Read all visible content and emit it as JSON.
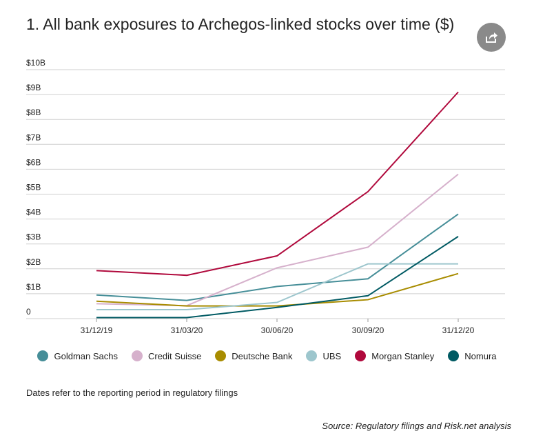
{
  "title": "1. All bank exposures to Archegos-linked stocks over time ($)",
  "share_icon": "share-icon",
  "note": "Dates refer to the reporting period in regulatory filings",
  "source": "Source: Regulatory filings and Risk.net analysis",
  "chart_data": {
    "type": "line",
    "title": "1. All bank exposures to Archegos-linked stocks over time ($)",
    "xlabel": "",
    "ylabel": "",
    "x": [
      "31/12/19",
      "31/03/20",
      "30/06/20",
      "30/09/20",
      "31/12/20"
    ],
    "ylim": [
      0,
      10
    ],
    "yticks": [
      0,
      1,
      2,
      3,
      4,
      5,
      6,
      7,
      8,
      9,
      10
    ],
    "ytick_labels": [
      "0",
      "$1B",
      "$2B",
      "$3B",
      "$4B",
      "$5B",
      "$6B",
      "$7B",
      "$8B",
      "$9B",
      "$10B"
    ],
    "grid": true,
    "legend_position": "bottom",
    "series": [
      {
        "name": "Goldman Sachs",
        "color": "#468e98",
        "values": [
          0.95,
          0.73,
          1.29,
          1.6,
          4.2
        ]
      },
      {
        "name": "Credit Suisse",
        "color": "#d6b1cc",
        "values": [
          0.6,
          0.52,
          2.04,
          2.87,
          5.8
        ]
      },
      {
        "name": "Deutsche Bank",
        "color": "#a88c00",
        "values": [
          0.7,
          0.51,
          0.51,
          0.76,
          1.81
        ]
      },
      {
        "name": "UBS",
        "color": "#9dc6cd",
        "values": [
          0.36,
          0.36,
          0.65,
          2.2,
          2.2
        ]
      },
      {
        "name": "Morgan Stanley",
        "color": "#b0093c",
        "values": [
          1.93,
          1.74,
          2.52,
          5.1,
          9.1
        ]
      },
      {
        "name": "Nomura",
        "color": "#005a63",
        "values": [
          0.04,
          0.04,
          0.45,
          0.92,
          3.3
        ]
      }
    ]
  }
}
